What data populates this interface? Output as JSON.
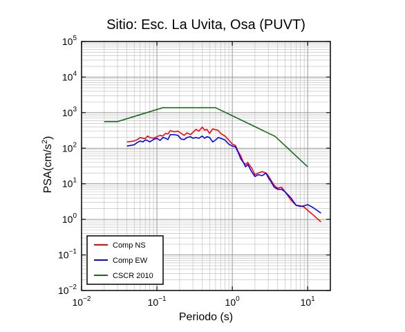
{
  "chart_data": {
    "type": "line",
    "title": "Sitio: Esc. La Uvita, Osa (PUVT)",
    "xlabel": "Periodo (s)",
    "ylabel": "PSA(cm/s²)",
    "ylabel_parts": {
      "base": "PSA(cm/s",
      "sup": "2",
      "tail": ")"
    },
    "xscale": "log",
    "yscale": "log",
    "xlim": [
      0.01,
      20
    ],
    "ylim": [
      0.01,
      100000
    ],
    "grid": true,
    "legend_position": "bottom-left",
    "x_ticks": [
      {
        "value": 0.01,
        "base": "10",
        "exp": "−2"
      },
      {
        "value": 0.1,
        "base": "10",
        "exp": "−1"
      },
      {
        "value": 1,
        "base": "10",
        "exp": "0"
      },
      {
        "value": 10,
        "base": "10",
        "exp": "1"
      }
    ],
    "y_ticks": [
      {
        "value": 0.01,
        "base": "10",
        "exp": "−2"
      },
      {
        "value": 0.1,
        "base": "10",
        "exp": "−1"
      },
      {
        "value": 1,
        "base": "10",
        "exp": "0"
      },
      {
        "value": 10,
        "base": "10",
        "exp": "1"
      },
      {
        "value": 100,
        "base": "10",
        "exp": "2"
      },
      {
        "value": 1000,
        "base": "10",
        "exp": "3"
      },
      {
        "value": 10000,
        "base": "10",
        "exp": "4"
      },
      {
        "value": 100000,
        "base": "10",
        "exp": "5"
      }
    ],
    "series": [
      {
        "name": "Comp NS",
        "color": "#ff0000",
        "points": [
          [
            0.04,
            150
          ],
          [
            0.045,
            155
          ],
          [
            0.05,
            160
          ],
          [
            0.055,
            175
          ],
          [
            0.06,
            200
          ],
          [
            0.065,
            190
          ],
          [
            0.07,
            185
          ],
          [
            0.075,
            220
          ],
          [
            0.08,
            200
          ],
          [
            0.09,
            190
          ],
          [
            0.1,
            210
          ],
          [
            0.11,
            230
          ],
          [
            0.12,
            220
          ],
          [
            0.13,
            260
          ],
          [
            0.14,
            250
          ],
          [
            0.15,
            310
          ],
          [
            0.17,
            290
          ],
          [
            0.19,
            300
          ],
          [
            0.21,
            260
          ],
          [
            0.23,
            230
          ],
          [
            0.25,
            270
          ],
          [
            0.28,
            240
          ],
          [
            0.3,
            280
          ],
          [
            0.33,
            340
          ],
          [
            0.36,
            300
          ],
          [
            0.4,
            390
          ],
          [
            0.43,
            320
          ],
          [
            0.46,
            340
          ],
          [
            0.5,
            260
          ],
          [
            0.55,
            350
          ],
          [
            0.6,
            330
          ],
          [
            0.65,
            320
          ],
          [
            0.7,
            260
          ],
          [
            0.8,
            220
          ],
          [
            0.9,
            170
          ],
          [
            1.0,
            130
          ],
          [
            1.1,
            120
          ],
          [
            1.2,
            80
          ],
          [
            1.3,
            60
          ],
          [
            1.4,
            40
          ],
          [
            1.5,
            35
          ],
          [
            1.6,
            40
          ],
          [
            1.7,
            33
          ],
          [
            1.8,
            28
          ],
          [
            2.0,
            18
          ],
          [
            2.2,
            20
          ],
          [
            2.5,
            22
          ],
          [
            2.8,
            20
          ],
          [
            3.0,
            17
          ],
          [
            3.3,
            12
          ],
          [
            3.6,
            9
          ],
          [
            4.0,
            7.5
          ],
          [
            4.5,
            8
          ],
          [
            5.0,
            6
          ],
          [
            6.0,
            3.5
          ],
          [
            7.0,
            2.5
          ],
          [
            8.0,
            2.4
          ],
          [
            9.0,
            2.2
          ],
          [
            10,
            1.8
          ],
          [
            12,
            1.3
          ],
          [
            15,
            0.85
          ]
        ]
      },
      {
        "name": "Comp EW",
        "color": "#0000ff",
        "points": [
          [
            0.04,
            115
          ],
          [
            0.045,
            120
          ],
          [
            0.05,
            125
          ],
          [
            0.055,
            145
          ],
          [
            0.06,
            160
          ],
          [
            0.065,
            150
          ],
          [
            0.07,
            170
          ],
          [
            0.075,
            165
          ],
          [
            0.08,
            150
          ],
          [
            0.09,
            175
          ],
          [
            0.1,
            190
          ],
          [
            0.11,
            165
          ],
          [
            0.12,
            200
          ],
          [
            0.13,
            190
          ],
          [
            0.14,
            175
          ],
          [
            0.15,
            240
          ],
          [
            0.17,
            240
          ],
          [
            0.19,
            230
          ],
          [
            0.21,
            180
          ],
          [
            0.23,
            175
          ],
          [
            0.25,
            200
          ],
          [
            0.28,
            210
          ],
          [
            0.3,
            190
          ],
          [
            0.33,
            200
          ],
          [
            0.36,
            190
          ],
          [
            0.4,
            220
          ],
          [
            0.43,
            190
          ],
          [
            0.46,
            210
          ],
          [
            0.5,
            200
          ],
          [
            0.55,
            150
          ],
          [
            0.6,
            170
          ],
          [
            0.65,
            200
          ],
          [
            0.7,
            190
          ],
          [
            0.8,
            170
          ],
          [
            0.9,
            130
          ],
          [
            1.0,
            115
          ],
          [
            1.1,
            110
          ],
          [
            1.2,
            75
          ],
          [
            1.3,
            50
          ],
          [
            1.4,
            40
          ],
          [
            1.5,
            30
          ],
          [
            1.6,
            35
          ],
          [
            1.7,
            28
          ],
          [
            1.8,
            22
          ],
          [
            2.0,
            16
          ],
          [
            2.2,
            18
          ],
          [
            2.5,
            17
          ],
          [
            2.8,
            20
          ],
          [
            3.0,
            15
          ],
          [
            3.3,
            11
          ],
          [
            3.6,
            8
          ],
          [
            4.0,
            7
          ],
          [
            4.5,
            7
          ],
          [
            5.0,
            6
          ],
          [
            6.0,
            4
          ],
          [
            7.0,
            2.5
          ],
          [
            8.0,
            2.3
          ],
          [
            9.0,
            2.4
          ],
          [
            10,
            2.6
          ],
          [
            12,
            2.1
          ],
          [
            15,
            1.5
          ]
        ]
      },
      {
        "name": "CSCR 2010",
        "color": "#1a6b1a",
        "points": [
          [
            0.02,
            560
          ],
          [
            0.03,
            560
          ],
          [
            0.12,
            1380
          ],
          [
            0.6,
            1380
          ],
          [
            3.7,
            215
          ],
          [
            10,
            30
          ]
        ]
      }
    ]
  }
}
